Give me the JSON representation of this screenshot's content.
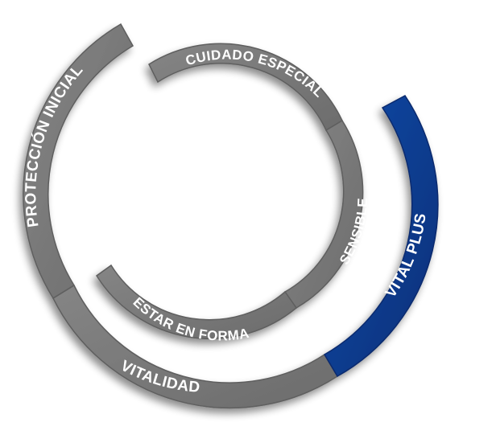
{
  "colors": {
    "gray_segment": "#7a7a7a",
    "gray_stroke": "#5e5e5e",
    "blue_segment": "#0d3a8e",
    "blue_stroke": "#072a6e",
    "label_text": "#ffffff"
  },
  "outer_ring": {
    "segments": [
      {
        "id": "proteccion-inicial",
        "label": "PROTECCIÓN INICIAL",
        "color": "gray"
      },
      {
        "id": "vitalidad",
        "label": "VITALIDAD",
        "color": "gray"
      },
      {
        "id": "vital-plus",
        "label": "VITAL PLUS",
        "color": "blue"
      }
    ]
  },
  "inner_ring": {
    "segments": [
      {
        "id": "cuidado-especial",
        "label": "CUIDADO ESPECIAL",
        "color": "gray"
      },
      {
        "id": "sensible",
        "label": "SENSIBLE",
        "color": "gray"
      },
      {
        "id": "estar-en-forma",
        "label": "ESTAR EN FORMA",
        "color": "gray"
      }
    ]
  }
}
